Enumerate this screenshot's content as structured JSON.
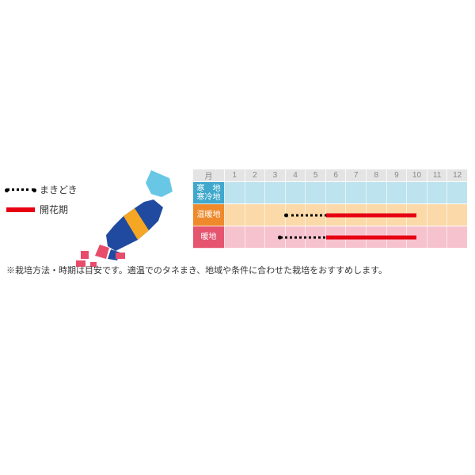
{
  "legend": {
    "sowing": {
      "label": "まきどき",
      "color": "#000000"
    },
    "flowering": {
      "label": "開花期",
      "color": "#e60012"
    }
  },
  "map": {
    "land_color": "#1f4aa0",
    "cold_color": "#69c7e6",
    "temperate_color": "#f5a623",
    "warm_color": "#e94b6a"
  },
  "chart": {
    "month_header": "月",
    "months": [
      "1",
      "2",
      "3",
      "4",
      "5",
      "6",
      "7",
      "8",
      "9",
      "10",
      "11",
      "12"
    ],
    "header_bg": "#e4e4e4",
    "header_text": "#888888",
    "rows": [
      {
        "label": "寒　地\n寒冷地",
        "label_bg": "#3fa8cc",
        "row_bg": "#bce3ee",
        "bars": []
      },
      {
        "label": "温暖地",
        "label_bg": "#ee8a2b",
        "row_bg": "#fbd9a8",
        "bars": [
          {
            "type": "dotted",
            "start": 4.0,
            "end": 7.0,
            "color": "#000000"
          },
          {
            "type": "solid",
            "start": 6.0,
            "end": 10.5,
            "color": "#e60012"
          }
        ]
      },
      {
        "label": "暖地",
        "label_bg": "#e55570",
        "row_bg": "#f6c2cd",
        "bars": [
          {
            "type": "dotted",
            "start": 3.7,
            "end": 7.0,
            "color": "#000000"
          },
          {
            "type": "solid",
            "start": 6.0,
            "end": 10.5,
            "color": "#e60012"
          }
        ]
      }
    ]
  },
  "footnote": "※栽培方法・時期は目安です。適温でのタネまき、地域や条件に合わせた栽培をおすすめします。"
}
